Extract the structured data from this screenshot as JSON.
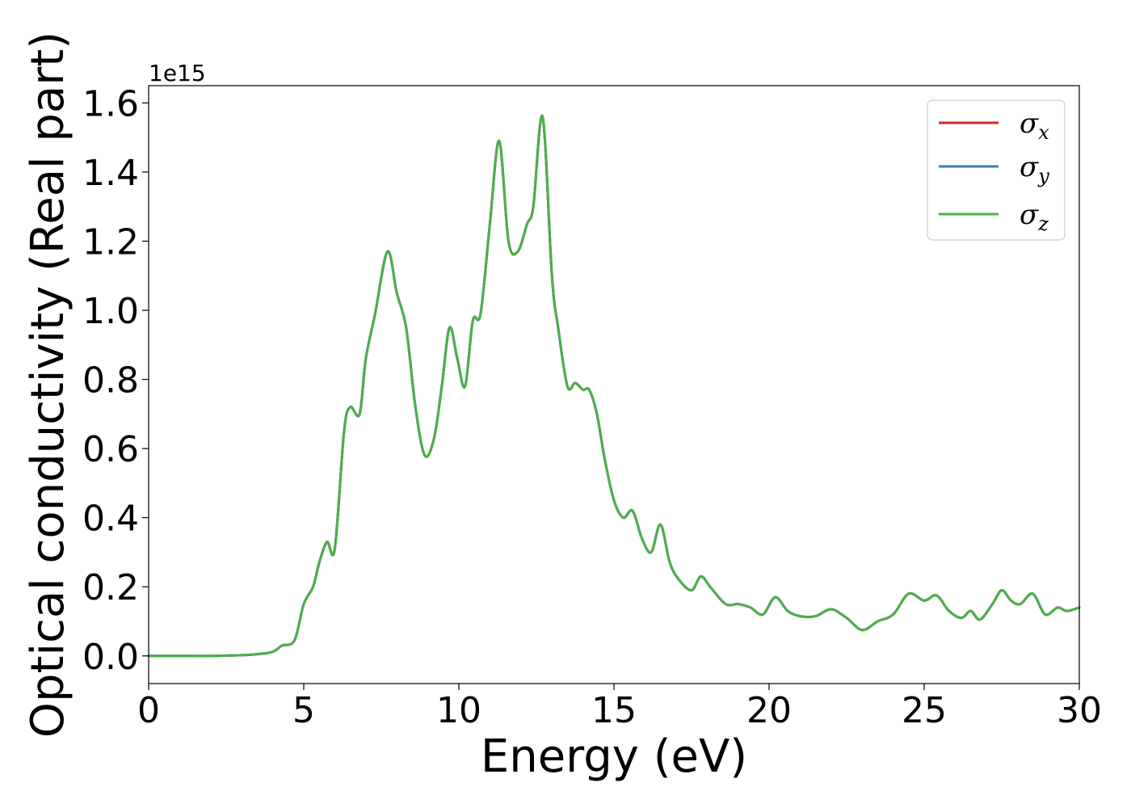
{
  "chart_data": {
    "type": "line",
    "title": "",
    "xlabel": "Energy (eV)",
    "ylabel": "Optical conductivity (Real part)",
    "y_offset_label": "1e15",
    "xlim": [
      0,
      30
    ],
    "ylim": [
      -0.08,
      1.65
    ],
    "x_ticks": [
      0,
      5,
      10,
      15,
      20,
      25,
      30
    ],
    "x_tick_labels": [
      "0",
      "5",
      "10",
      "15",
      "20",
      "25",
      "30"
    ],
    "y_ticks": [
      0.0,
      0.2,
      0.4,
      0.6,
      0.8,
      1.0,
      1.2,
      1.4,
      1.6
    ],
    "y_tick_labels": [
      "0.0",
      "0.2",
      "0.4",
      "0.6",
      "0.8",
      "1.0",
      "1.2",
      "1.4",
      "1.6"
    ],
    "grid": false,
    "legend_position": "top-right",
    "x": [
      0,
      1,
      2,
      3,
      3.5,
      4.0,
      4.3,
      4.7,
      5.0,
      5.3,
      5.5,
      5.75,
      6.0,
      6.3,
      6.5,
      6.8,
      7.0,
      7.3,
      7.7,
      8.0,
      8.3,
      8.6,
      8.9,
      9.2,
      9.45,
      9.7,
      9.95,
      10.2,
      10.45,
      10.7,
      11.0,
      11.3,
      11.6,
      11.9,
      12.2,
      12.4,
      12.7,
      13.0,
      13.2,
      13.5,
      13.75,
      14.0,
      14.2,
      14.45,
      14.7,
      15.0,
      15.3,
      15.6,
      15.9,
      16.2,
      16.5,
      16.8,
      17.1,
      17.5,
      17.8,
      18.1,
      18.6,
      19.0,
      19.4,
      19.8,
      20.2,
      20.6,
      21.0,
      21.5,
      22.0,
      22.5,
      23.0,
      23.5,
      24.0,
      24.5,
      25.0,
      25.4,
      25.8,
      26.2,
      26.5,
      26.8,
      27.2,
      27.5,
      27.8,
      28.1,
      28.5,
      28.9,
      29.3,
      29.6,
      30.0
    ],
    "series": [
      {
        "name": "σx",
        "color": "#d62728",
        "values": [
          0.0,
          0.0,
          0.0,
          0.002,
          0.005,
          0.012,
          0.03,
          0.045,
          0.15,
          0.2,
          0.27,
          0.33,
          0.31,
          0.65,
          0.72,
          0.7,
          0.86,
          0.99,
          1.17,
          1.05,
          0.95,
          0.72,
          0.58,
          0.63,
          0.78,
          0.95,
          0.86,
          0.78,
          0.97,
          0.99,
          1.25,
          1.49,
          1.2,
          1.17,
          1.25,
          1.3,
          1.56,
          1.1,
          0.95,
          0.78,
          0.79,
          0.77,
          0.77,
          0.7,
          0.57,
          0.45,
          0.4,
          0.42,
          0.34,
          0.3,
          0.38,
          0.27,
          0.22,
          0.19,
          0.23,
          0.2,
          0.15,
          0.15,
          0.14,
          0.12,
          0.17,
          0.13,
          0.115,
          0.115,
          0.135,
          0.11,
          0.075,
          0.1,
          0.12,
          0.18,
          0.16,
          0.175,
          0.13,
          0.11,
          0.13,
          0.105,
          0.15,
          0.19,
          0.16,
          0.15,
          0.18,
          0.12,
          0.14,
          0.13,
          0.14
        ]
      },
      {
        "name": "σy",
        "color": "#377eb8",
        "values": [
          0.0,
          0.0,
          0.0,
          0.002,
          0.005,
          0.012,
          0.03,
          0.045,
          0.15,
          0.2,
          0.27,
          0.33,
          0.31,
          0.65,
          0.72,
          0.7,
          0.86,
          0.99,
          1.17,
          1.05,
          0.95,
          0.72,
          0.58,
          0.63,
          0.78,
          0.95,
          0.86,
          0.78,
          0.97,
          0.99,
          1.25,
          1.49,
          1.2,
          1.17,
          1.25,
          1.3,
          1.56,
          1.1,
          0.95,
          0.78,
          0.79,
          0.77,
          0.77,
          0.7,
          0.57,
          0.45,
          0.4,
          0.42,
          0.34,
          0.3,
          0.38,
          0.27,
          0.22,
          0.19,
          0.23,
          0.2,
          0.15,
          0.15,
          0.14,
          0.12,
          0.17,
          0.13,
          0.115,
          0.115,
          0.135,
          0.11,
          0.075,
          0.1,
          0.12,
          0.18,
          0.16,
          0.175,
          0.13,
          0.11,
          0.13,
          0.105,
          0.15,
          0.19,
          0.16,
          0.15,
          0.18,
          0.12,
          0.14,
          0.13,
          0.14
        ]
      },
      {
        "name": "σz",
        "color": "#4daf4a",
        "values": [
          0.0,
          0.0,
          0.0,
          0.002,
          0.005,
          0.012,
          0.03,
          0.045,
          0.15,
          0.2,
          0.27,
          0.33,
          0.31,
          0.65,
          0.72,
          0.7,
          0.86,
          0.99,
          1.17,
          1.05,
          0.95,
          0.72,
          0.58,
          0.63,
          0.78,
          0.95,
          0.86,
          0.78,
          0.97,
          0.99,
          1.25,
          1.49,
          1.2,
          1.17,
          1.25,
          1.3,
          1.56,
          1.1,
          0.95,
          0.78,
          0.79,
          0.77,
          0.77,
          0.7,
          0.57,
          0.45,
          0.4,
          0.42,
          0.34,
          0.3,
          0.38,
          0.27,
          0.22,
          0.19,
          0.23,
          0.2,
          0.15,
          0.15,
          0.14,
          0.12,
          0.17,
          0.13,
          0.115,
          0.115,
          0.135,
          0.11,
          0.075,
          0.1,
          0.12,
          0.18,
          0.16,
          0.175,
          0.13,
          0.11,
          0.13,
          0.105,
          0.15,
          0.19,
          0.16,
          0.15,
          0.18,
          0.12,
          0.14,
          0.13,
          0.14
        ]
      }
    ],
    "legend": [
      {
        "symbol": "σ",
        "sub": "x",
        "color": "#d62728"
      },
      {
        "symbol": "σ",
        "sub": "y",
        "color": "#377eb8"
      },
      {
        "symbol": "σ",
        "sub": "z",
        "color": "#4daf4a"
      }
    ]
  }
}
